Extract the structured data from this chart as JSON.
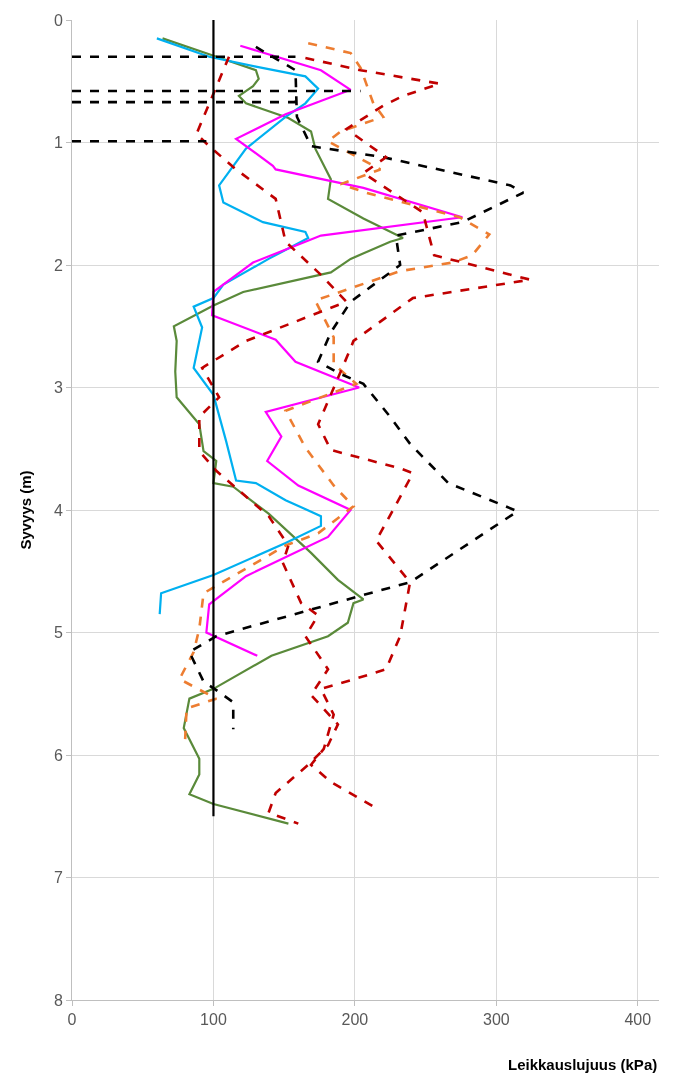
{
  "chart_data": {
    "type": "line",
    "xlabel": "Leikkauslujuus (kPa)",
    "ylabel": "Syvyys (m)",
    "xlim": [
      0,
      415
    ],
    "xticks": [
      0,
      100,
      200,
      300,
      400
    ],
    "ylim": [
      8,
      0
    ],
    "yticks": [
      0,
      1,
      2,
      3,
      4,
      5,
      6,
      7,
      8
    ],
    "grid": true,
    "marker": "none",
    "series": [
      {
        "color": "#5a8a3a",
        "line_style": "solid",
        "x": [
          64,
          97,
          130,
          132,
          128,
          118,
          123,
          153,
          169,
          172,
          183,
          181,
          206,
          234,
          225,
          197,
          183,
          121,
          100,
          72,
          74,
          73,
          74,
          90,
          93,
          102,
          100,
          114,
          139,
          169,
          188,
          206,
          199,
          195,
          181,
          141,
          100,
          83,
          79,
          90,
          90,
          83,
          100,
          153
        ],
        "values": [
          0.15,
          0.28,
          0.41,
          0.48,
          0.54,
          0.62,
          0.68,
          0.8,
          0.91,
          1.05,
          1.3,
          1.46,
          1.62,
          1.78,
          1.81,
          1.95,
          2.06,
          2.22,
          2.33,
          2.5,
          2.62,
          2.87,
          3.08,
          3.3,
          3.52,
          3.6,
          3.78,
          3.81,
          4.03,
          4.35,
          4.57,
          4.73,
          4.76,
          4.92,
          5.03,
          5.19,
          5.46,
          5.54,
          5.78,
          6.03,
          6.16,
          6.32,
          6.4,
          6.56
        ]
      },
      {
        "color": "#00b0f0",
        "line_style": "solid",
        "x": [
          60,
          97,
          130,
          165,
          174,
          165,
          151,
          123,
          104,
          107,
          135,
          165,
          167,
          139,
          107,
          100,
          86,
          92,
          86,
          100,
          109,
          116,
          130,
          151,
          176,
          176,
          151,
          100,
          63,
          62
        ],
        "values": [
          0.15,
          0.3,
          0.38,
          0.46,
          0.56,
          0.68,
          0.79,
          1.05,
          1.35,
          1.49,
          1.65,
          1.73,
          1.78,
          1.95,
          2.16,
          2.27,
          2.34,
          2.51,
          2.84,
          3.06,
          3.44,
          3.76,
          3.78,
          3.92,
          4.05,
          4.13,
          4.27,
          4.53,
          4.68,
          4.85
        ]
      },
      {
        "color": "#ff00ff",
        "line_style": "solid",
        "x": [
          119,
          176,
          197,
          151,
          116,
          142,
          144,
          206,
          276,
          176,
          128,
          100,
          99,
          144,
          158,
          203,
          137,
          148,
          138,
          160,
          197,
          181,
          123,
          97,
          95,
          131
        ],
        "values": [
          0.21,
          0.41,
          0.57,
          0.77,
          0.97,
          1.19,
          1.22,
          1.37,
          1.61,
          1.76,
          1.98,
          2.22,
          2.41,
          2.61,
          2.79,
          3.0,
          3.2,
          3.4,
          3.6,
          3.8,
          4.0,
          4.22,
          4.54,
          4.77,
          5.0,
          5.19
        ]
      },
      {
        "color": "#ed7d31",
        "line_style": "dashed",
        "x": [
          167,
          197,
          204,
          213,
          220,
          190,
          181,
          218,
          190,
          208,
          274,
          295,
          283,
          269,
          232,
          172,
          185,
          185,
          201,
          151,
          165,
          185,
          199,
          174,
          151,
          93,
          90,
          86,
          76,
          102,
          81,
          80
        ],
        "values": [
          0.19,
          0.27,
          0.39,
          0.68,
          0.79,
          0.91,
          0.99,
          1.22,
          1.34,
          1.41,
          1.61,
          1.75,
          1.92,
          1.98,
          2.05,
          2.29,
          2.59,
          2.81,
          2.97,
          3.19,
          3.49,
          3.8,
          3.97,
          4.19,
          4.29,
          4.68,
          4.97,
          5.16,
          5.38,
          5.54,
          5.62,
          5.87
        ]
      },
      {
        "color": "#000000",
        "line_style": "dashed",
        "x": [
          130,
          158,
          159,
          169,
          220,
          310,
          319,
          276,
          229,
          232,
          197,
          183,
          174,
          190,
          206,
          225,
          239,
          266,
          315,
          239,
          204,
          102,
          83,
          93,
          102,
          114,
          114
        ],
        "values": [
          0.22,
          0.41,
          0.79,
          1.03,
          1.12,
          1.35,
          1.41,
          1.65,
          1.76,
          2.0,
          2.3,
          2.55,
          2.79,
          2.89,
          2.97,
          3.24,
          3.46,
          3.78,
          4.01,
          4.59,
          4.7,
          5.03,
          5.16,
          5.4,
          5.47,
          5.57,
          5.79
        ]
      },
      {
        "color": "#c00000",
        "line_style": "dashed",
        "x": [
          165,
          204,
          260,
          234,
          220,
          194,
          222,
          206,
          248,
          256,
          324,
          241,
          199,
          197,
          174,
          183,
          232,
          241,
          227,
          215,
          239,
          232,
          222,
          197,
          176,
          185,
          178,
          169,
          183,
          213
        ],
        "values": [
          0.31,
          0.41,
          0.52,
          0.62,
          0.7,
          0.89,
          1.12,
          1.25,
          1.57,
          1.92,
          2.12,
          2.27,
          2.62,
          2.68,
          3.3,
          3.51,
          3.66,
          3.7,
          4.0,
          4.25,
          4.59,
          5.03,
          5.3,
          5.39,
          5.46,
          5.67,
          5.95,
          6.08,
          6.22,
          6.42
        ]
      },
      {
        "color": "#c00000",
        "line_style": "dashed",
        "x": [
          111,
          88,
          97,
          116,
          144,
          151,
          176,
          194,
          123,
          92,
          104,
          90,
          90,
          102,
          139,
          153,
          149,
          162,
          174,
          165,
          181,
          169,
          188,
          181,
          167,
          144,
          139,
          160
        ],
        "values": [
          0.3,
          0.93,
          1.03,
          1.22,
          1.46,
          1.81,
          2.08,
          2.3,
          2.62,
          2.84,
          3.08,
          3.24,
          3.52,
          3.68,
          4.05,
          4.29,
          4.43,
          4.76,
          4.86,
          5.03,
          5.3,
          5.51,
          5.75,
          5.92,
          6.08,
          6.31,
          6.47,
          6.56
        ]
      },
      {
        "color": "#000000",
        "line_style": "dashed",
        "x": [
          0,
          158,
          null,
          0,
          204,
          null,
          0,
          158,
          158,
          null,
          0,
          95
        ],
        "values": [
          0.3,
          0.3,
          null,
          0.58,
          0.58,
          null,
          0.67,
          0.67,
          0.58,
          null,
          0.99,
          0.99
        ]
      },
      {
        "color": "#000000",
        "line_style": "solid",
        "x": [
          100,
          100
        ],
        "values": [
          0,
          6.5
        ]
      }
    ]
  }
}
